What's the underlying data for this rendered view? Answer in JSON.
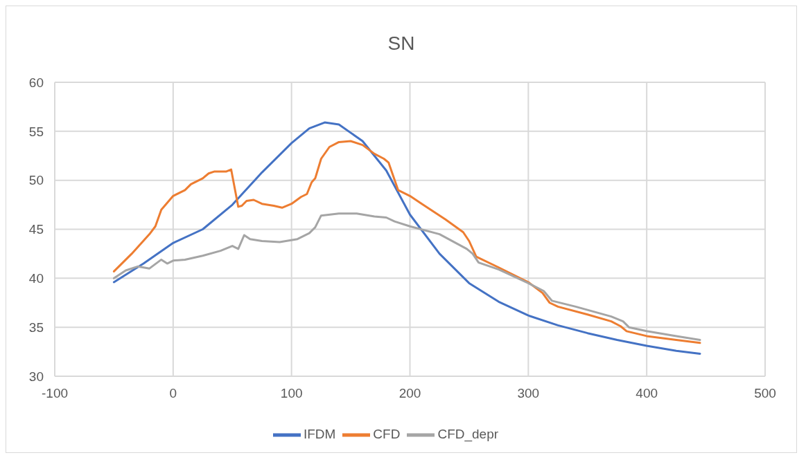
{
  "chart_data": {
    "type": "line",
    "title": "SN",
    "xlim": [
      -100,
      500
    ],
    "xticks": [
      -100,
      0,
      100,
      200,
      300,
      400,
      500
    ],
    "ylim": [
      30,
      60
    ],
    "yticks": [
      30,
      35,
      40,
      45,
      50,
      55,
      60
    ],
    "grid": true,
    "legend": "bottom",
    "marker": "none",
    "line_style": "solid",
    "series": [
      {
        "name": "IFDM",
        "color": "#4472c4",
        "x": [
          -50,
          -25,
          0,
          25,
          50,
          75,
          100,
          115,
          128,
          140,
          160,
          180,
          200,
          225,
          250,
          275,
          300,
          325,
          350,
          375,
          400,
          425,
          445
        ],
        "values": [
          39.6,
          41.5,
          43.6,
          45.0,
          47.5,
          50.8,
          53.8,
          55.3,
          55.9,
          55.7,
          54.0,
          51.0,
          46.5,
          42.5,
          39.5,
          37.6,
          36.2,
          35.2,
          34.4,
          33.7,
          33.1,
          32.6,
          32.3
        ]
      },
      {
        "name": "CFD",
        "color": "#ed7d31",
        "x": [
          -50,
          -35,
          -20,
          -15,
          -10,
          -5,
          0,
          10,
          15,
          25,
          30,
          35,
          45,
          49,
          55,
          58,
          62,
          68,
          75,
          85,
          92,
          100,
          108,
          113,
          117,
          120,
          125,
          132,
          140,
          150,
          160,
          170,
          178,
          182,
          190,
          200,
          210,
          230,
          245,
          250,
          256,
          275,
          300,
          312,
          318,
          325,
          350,
          370,
          378,
          383,
          400,
          425,
          445
        ],
        "values": [
          40.7,
          42.5,
          44.5,
          45.3,
          47.0,
          47.7,
          48.4,
          49.0,
          49.6,
          50.2,
          50.7,
          50.9,
          50.9,
          51.1,
          47.3,
          47.4,
          47.9,
          48.0,
          47.6,
          47.4,
          47.2,
          47.6,
          48.3,
          48.6,
          49.8,
          50.2,
          52.2,
          53.4,
          53.9,
          54.0,
          53.6,
          52.7,
          52.2,
          51.8,
          49.0,
          48.4,
          47.6,
          46.0,
          44.7,
          43.8,
          42.2,
          41.1,
          39.6,
          38.5,
          37.5,
          37.1,
          36.3,
          35.6,
          35.1,
          34.6,
          34.1,
          33.7,
          33.4
        ]
      },
      {
        "name": "CFD_depr",
        "color": "#a5a5a5",
        "x": [
          -50,
          -40,
          -30,
          -20,
          -10,
          -5,
          0,
          10,
          25,
          40,
          50,
          55,
          60,
          65,
          75,
          90,
          105,
          115,
          120,
          125,
          140,
          155,
          170,
          180,
          187,
          200,
          225,
          248,
          253,
          258,
          275,
          300,
          313,
          320,
          340,
          370,
          380,
          385,
          400,
          425,
          445
        ],
        "values": [
          40.0,
          40.8,
          41.2,
          41.0,
          41.9,
          41.5,
          41.8,
          41.9,
          42.3,
          42.8,
          43.3,
          43.0,
          44.4,
          44.0,
          43.8,
          43.7,
          44.0,
          44.6,
          45.2,
          46.4,
          46.6,
          46.6,
          46.3,
          46.2,
          45.8,
          45.3,
          44.5,
          43.0,
          42.5,
          41.6,
          40.9,
          39.5,
          38.7,
          37.7,
          37.1,
          36.1,
          35.6,
          35.0,
          34.6,
          34.1,
          33.7
        ]
      }
    ]
  }
}
